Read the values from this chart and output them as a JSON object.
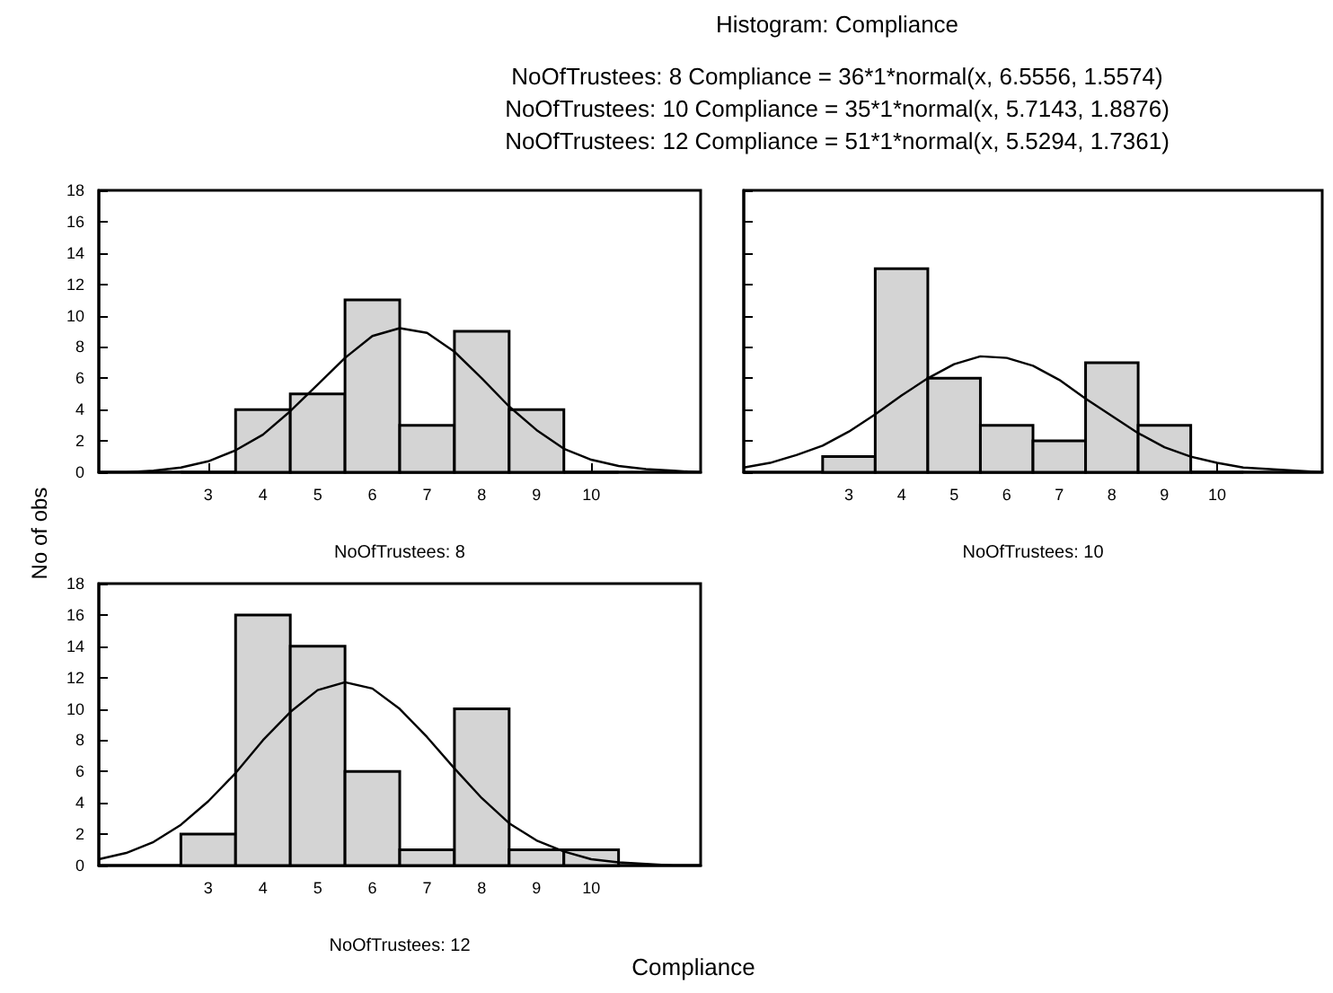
{
  "chart_data": [
    {
      "type": "histogram",
      "subtitle": "NoOfTrustees: 8 Compliance = 36*1*normal(x, 6.5556, 1.5574)\nNoOfTrustees: 10 Compliance = 35*1*normal(x, 5.7143, 1.8876)\nNoOfTrustees: 12 Compliance = 51*1*normal(x, 5.5294, 1.7361)",
      "xlabel": "NoOfTrustees: 8",
      "ylabel": "No of obs",
      "annotations": [
        "Compliance"
      ],
      "xlim": [
        1,
        12
      ],
      "xticks": [
        3,
        4,
        5,
        6,
        7,
        8,
        9,
        10
      ],
      "ylim": [
        0,
        18
      ],
      "yticks": [
        0,
        2,
        4,
        6,
        8,
        10,
        12,
        14,
        16,
        18
      ],
      "grid": false,
      "series": [
        {
          "type": "histogram",
          "color": "#d4d4d4",
          "bins": [
            2.5,
            3.5,
            4.5,
            5.5,
            6.5,
            7.5,
            8.5,
            9.5,
            10.5
          ],
          "values": [
            0,
            4,
            5,
            11,
            3,
            9,
            4,
            0
          ]
        },
        {
          "type": "line",
          "color": "#000000",
          "marker": "none",
          "x": [
            1,
            1.5,
            2,
            2.5,
            3,
            3.5,
            4,
            4.5,
            5,
            5.5,
            6,
            6.5,
            7,
            7.5,
            8,
            8.5,
            9,
            9.5,
            10,
            10.5,
            11,
            11.5,
            12
          ],
          "values": [
            0,
            0,
            0.1,
            0.3,
            0.7,
            1.4,
            2.4,
            3.9,
            5.6,
            7.3,
            8.7,
            9.2,
            8.9,
            7.7,
            6,
            4.2,
            2.7,
            1.5,
            0.8,
            0.4,
            0.2,
            0.1,
            0
          ]
        }
      ]
    },
    {
      "type": "histogram",
      "title": "Histogram: Compliance",
      "xlabel": "NoOfTrustees: 10",
      "xlim": [
        1,
        12
      ],
      "xticks": [
        3,
        4,
        5,
        6,
        7,
        8,
        9,
        10
      ],
      "ylim": [
        0,
        18
      ],
      "yticks": [
        0,
        2,
        4,
        6,
        8,
        10,
        12,
        14,
        16,
        18
      ],
      "tick_labels": "x",
      "grid": false,
      "series": [
        {
          "type": "histogram",
          "color": "#d4d4d4",
          "bins": [
            2.5,
            3.5,
            4.5,
            5.5,
            6.5,
            7.5,
            8.5,
            9.5,
            10.5
          ],
          "values": [
            1,
            13,
            6,
            3,
            2,
            7,
            3,
            0
          ]
        },
        {
          "type": "line",
          "color": "#000000",
          "marker": "none",
          "x": [
            1,
            1.5,
            2,
            2.5,
            3,
            3.5,
            4,
            4.5,
            5,
            5.5,
            6,
            6.5,
            7,
            7.5,
            8,
            8.5,
            9,
            9.5,
            10,
            10.5,
            11,
            11.5,
            12
          ],
          "values": [
            0.3,
            0.6,
            1.1,
            1.7,
            2.6,
            3.7,
            4.9,
            6,
            6.9,
            7.4,
            7.3,
            6.8,
            5.9,
            4.7,
            3.6,
            2.5,
            1.6,
            1,
            0.6,
            0.3,
            0.2,
            0.1,
            0
          ]
        }
      ]
    },
    {
      "type": "histogram",
      "xlabel": "NoOfTrustees: 12",
      "xlim": [
        1,
        12
      ],
      "xticks": [
        3,
        4,
        5,
        6,
        7,
        8,
        9,
        10
      ],
      "ylim": [
        0,
        18
      ],
      "yticks": [
        0,
        2,
        4,
        6,
        8,
        10,
        12,
        14,
        16,
        18
      ],
      "grid": false,
      "series": [
        {
          "type": "histogram",
          "color": "#d4d4d4",
          "bins": [
            2.5,
            3.5,
            4.5,
            5.5,
            6.5,
            7.5,
            8.5,
            9.5,
            10.5
          ],
          "values": [
            2,
            16,
            14,
            6,
            1,
            10,
            1,
            1
          ]
        },
        {
          "type": "line",
          "color": "#000000",
          "marker": "none",
          "x": [
            1,
            1.5,
            2,
            2.5,
            3,
            3.5,
            4,
            4.5,
            5,
            5.5,
            6,
            6.5,
            7,
            7.5,
            8,
            8.5,
            9,
            9.5,
            10,
            10.5,
            11,
            11.5,
            12
          ],
          "values": [
            0.4,
            0.8,
            1.5,
            2.6,
            4.1,
            5.9,
            8,
            9.8,
            11.2,
            11.7,
            11.3,
            10,
            8.2,
            6.2,
            4.3,
            2.7,
            1.6,
            0.9,
            0.4,
            0.2,
            0.1,
            0,
            0
          ]
        }
      ]
    }
  ]
}
